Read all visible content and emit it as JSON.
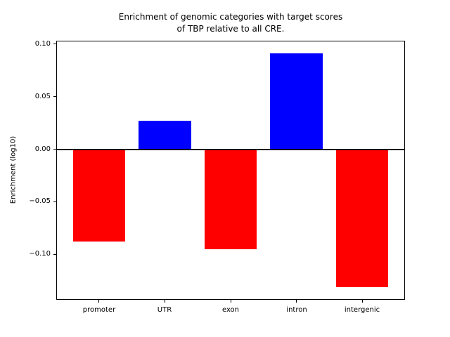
{
  "figure": {
    "title_lines": [
      "Enrichment of genomic categories with target scores",
      "of TBP relative to all CRE."
    ],
    "ylabel": "Enrichment (log10)"
  },
  "chart_data": {
    "type": "bar",
    "title": "Enrichment of genomic categories with target scores\nof TBP relative to all CRE.",
    "xlabel": "",
    "ylabel": "Enrichment (log10)",
    "categories": [
      "promoter",
      "UTR",
      "exon",
      "intron",
      "intergenic"
    ],
    "values": [
      -0.088,
      0.027,
      -0.095,
      0.091,
      -0.131
    ],
    "bar_colors": [
      "#ff0000",
      "#0000ff",
      "#ff0000",
      "#0000ff",
      "#ff0000"
    ],
    "positive_color": "#0000ff",
    "negative_color": "#ff0000",
    "bar_width": 0.8,
    "baseline": 0,
    "zero_line": true,
    "grid": false,
    "legend": null,
    "ylim": [
      -0.1424,
      0.1024
    ],
    "xlim": [
      -0.64,
      4.64
    ],
    "yticks": {
      "values": [
        0.1,
        0.05,
        0.0,
        -0.05,
        -0.1
      ],
      "labels": [
        "0.10",
        "0.05",
        "0.00",
        "−0.05",
        "−0.10"
      ]
    }
  }
}
